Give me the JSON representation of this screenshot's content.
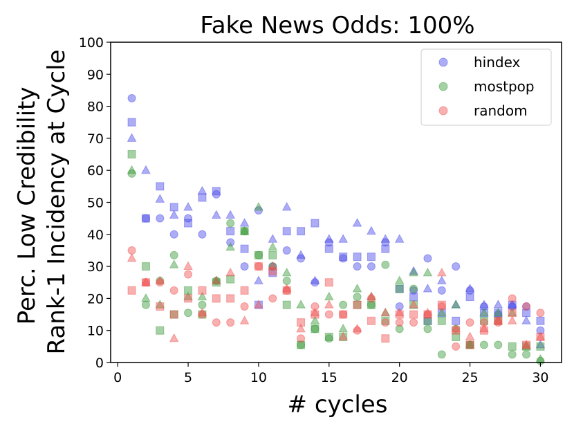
{
  "chart_data": {
    "type": "scatter",
    "title": "Fake News Odds: 100%",
    "xlabel": "# cycles",
    "ylabel": "Perc. Low Credibility\nRank-1 Incidency at Cycle",
    "xlim": [
      -0.5,
      31.5
    ],
    "ylim": [
      0,
      100
    ],
    "xticks": [
      0,
      5,
      10,
      15,
      20,
      25,
      30
    ],
    "yticks": [
      0,
      10,
      20,
      30,
      40,
      50,
      60,
      70,
      80,
      90,
      100
    ],
    "grid": false,
    "legend_position": "top-right",
    "marker_shapes": [
      "circle",
      "square",
      "triangle"
    ],
    "series": [
      {
        "name": "hindex",
        "color": "#4a4ae8",
        "circles": [
          [
            1,
            82.5
          ],
          [
            2,
            45
          ],
          [
            3,
            45
          ],
          [
            4,
            40
          ],
          [
            5,
            45
          ],
          [
            6,
            40
          ],
          [
            7,
            52.5
          ],
          [
            8,
            37.5
          ],
          [
            9,
            30
          ],
          [
            10,
            47.5
          ],
          [
            11,
            30
          ],
          [
            12,
            35
          ],
          [
            13,
            32.5
          ],
          [
            14,
            25
          ],
          [
            15,
            37.5
          ],
          [
            16,
            32.5
          ],
          [
            17,
            30
          ],
          [
            18,
            30
          ],
          [
            19,
            37.5
          ],
          [
            20,
            17.5
          ],
          [
            21,
            22.5
          ],
          [
            22,
            32.5
          ],
          [
            23,
            22.5
          ],
          [
            24,
            30
          ],
          [
            25,
            22.5
          ],
          [
            26,
            17.5
          ],
          [
            27,
            15
          ],
          [
            28,
            17.5
          ],
          [
            29,
            17.5
          ],
          [
            30,
            10
          ]
        ],
        "squares": [
          [
            1,
            75
          ],
          [
            2,
            45
          ],
          [
            3,
            55
          ],
          [
            4,
            48.5
          ],
          [
            5,
            43.5
          ],
          [
            6,
            51.5
          ],
          [
            7,
            53.5
          ],
          [
            8,
            41
          ],
          [
            9,
            35.5
          ],
          [
            10,
            18
          ],
          [
            11,
            28
          ],
          [
            12,
            41
          ],
          [
            13,
            41
          ],
          [
            14,
            43.5
          ],
          [
            15,
            35.5
          ],
          [
            16,
            33
          ],
          [
            17,
            33
          ],
          [
            18,
            33
          ],
          [
            19,
            35.5
          ],
          [
            20,
            23
          ],
          [
            21,
            20.5
          ],
          [
            22,
            13
          ],
          [
            23,
            15.5
          ],
          [
            24,
            13
          ],
          [
            25,
            20.5
          ],
          [
            26,
            15.5
          ],
          [
            27,
            15.5
          ],
          [
            28,
            18
          ],
          [
            29,
            15.5
          ],
          [
            30,
            13
          ]
        ],
        "triangles": [
          [
            1,
            70
          ],
          [
            2,
            60
          ],
          [
            3,
            51
          ],
          [
            4,
            46
          ],
          [
            5,
            48.5
          ],
          [
            6,
            53.5
          ],
          [
            7,
            46
          ],
          [
            8,
            46
          ],
          [
            9,
            43.5
          ],
          [
            10,
            25.5
          ],
          [
            11,
            38.5
          ],
          [
            12,
            48.5
          ],
          [
            13,
            33.5
          ],
          [
            14,
            25.5
          ],
          [
            15,
            38.5
          ],
          [
            16,
            38.5
          ],
          [
            17,
            43.5
          ],
          [
            18,
            41
          ],
          [
            19,
            38.5
          ],
          [
            20,
            38.5
          ],
          [
            21,
            28.5
          ],
          [
            22,
            23
          ],
          [
            23,
            25.5
          ],
          [
            24,
            18
          ],
          [
            25,
            23
          ],
          [
            26,
            18
          ],
          [
            27,
            18
          ],
          [
            28,
            18
          ],
          [
            29,
            13
          ],
          [
            30,
            5.5
          ]
        ]
      },
      {
        "name": "mostpop",
        "color": "#3a9a3a",
        "circles": [
          [
            1,
            59
          ],
          [
            2,
            18
          ],
          [
            3,
            25.5
          ],
          [
            4,
            33.5
          ],
          [
            5,
            15.5
          ],
          [
            6,
            18
          ],
          [
            7,
            25.5
          ],
          [
            8,
            43.5
          ],
          [
            9,
            41
          ],
          [
            10,
            33.5
          ],
          [
            11,
            30
          ],
          [
            12,
            25.5
          ],
          [
            13,
            5.5
          ],
          [
            14,
            10.5
          ],
          [
            15,
            7.5
          ],
          [
            16,
            18
          ],
          [
            17,
            20.5
          ],
          [
            18,
            18
          ],
          [
            19,
            30.5
          ],
          [
            20,
            10.5
          ],
          [
            21,
            23
          ],
          [
            22,
            10.5
          ],
          [
            23,
            2.5
          ],
          [
            24,
            10.5
          ],
          [
            25,
            5.5
          ],
          [
            26,
            5.5
          ],
          [
            27,
            5.5
          ],
          [
            28,
            2.5
          ],
          [
            29,
            2.5
          ],
          [
            30,
            0.5
          ]
        ],
        "squares": [
          [
            1,
            65
          ],
          [
            2,
            30
          ],
          [
            3,
            10
          ],
          [
            4,
            15
          ],
          [
            5,
            22.5
          ],
          [
            6,
            15
          ],
          [
            7,
            25
          ],
          [
            8,
            26
          ],
          [
            9,
            41
          ],
          [
            10,
            33.5
          ],
          [
            11,
            33.5
          ],
          [
            12,
            18
          ],
          [
            13,
            5.5
          ],
          [
            14,
            10.5
          ],
          [
            15,
            8
          ],
          [
            16,
            8
          ],
          [
            17,
            18
          ],
          [
            18,
            18
          ],
          [
            19,
            13
          ],
          [
            20,
            23
          ],
          [
            21,
            18
          ],
          [
            22,
            13
          ],
          [
            23,
            13
          ],
          [
            24,
            8
          ],
          [
            25,
            5.5
          ],
          [
            26,
            13
          ],
          [
            27,
            13
          ],
          [
            28,
            5
          ],
          [
            29,
            5
          ],
          [
            30,
            5
          ]
        ],
        "triangles": [
          [
            1,
            60
          ],
          [
            2,
            20
          ],
          [
            3,
            18
          ],
          [
            4,
            30.5
          ],
          [
            5,
            20.5
          ],
          [
            6,
            20.5
          ],
          [
            7,
            25.5
          ],
          [
            8,
            36
          ],
          [
            9,
            41
          ],
          [
            10,
            48.5
          ],
          [
            11,
            36
          ],
          [
            12,
            28
          ],
          [
            13,
            18
          ],
          [
            14,
            13
          ],
          [
            15,
            20.5
          ],
          [
            16,
            10.5
          ],
          [
            17,
            23
          ],
          [
            18,
            20.5
          ],
          [
            19,
            15.5
          ],
          [
            20,
            25.5
          ],
          [
            21,
            28
          ],
          [
            22,
            28
          ],
          [
            23,
            15.5
          ],
          [
            24,
            18
          ],
          [
            25,
            5.5
          ],
          [
            26,
            15.5
          ],
          [
            27,
            15.5
          ],
          [
            28,
            15.5
          ],
          [
            29,
            5
          ],
          [
            30,
            1
          ]
        ]
      },
      {
        "name": "random",
        "color": "#f05050",
        "circles": [
          [
            1,
            35
          ],
          [
            2,
            25
          ],
          [
            3,
            25
          ],
          [
            4,
            22.5
          ],
          [
            5,
            27.5
          ],
          [
            6,
            15
          ],
          [
            7,
            12.5
          ],
          [
            8,
            12.5
          ],
          [
            9,
            17.5
          ],
          [
            10,
            30
          ],
          [
            11,
            20
          ],
          [
            12,
            22.5
          ],
          [
            13,
            7.5
          ],
          [
            14,
            17.5
          ],
          [
            15,
            15
          ],
          [
            16,
            15
          ],
          [
            17,
            10
          ],
          [
            18,
            20
          ],
          [
            19,
            12.5
          ],
          [
            20,
            12.5
          ],
          [
            21,
            12.5
          ],
          [
            22,
            15
          ],
          [
            23,
            17.5
          ],
          [
            24,
            5
          ],
          [
            25,
            12.5
          ],
          [
            26,
            12.5
          ],
          [
            27,
            12.5
          ],
          [
            28,
            20
          ],
          [
            29,
            17.5
          ],
          [
            30,
            15.5
          ]
        ],
        "squares": [
          [
            1,
            22.5
          ],
          [
            2,
            25
          ],
          [
            3,
            17.5
          ],
          [
            4,
            15
          ],
          [
            5,
            20
          ],
          [
            6,
            22.5
          ],
          [
            7,
            20
          ],
          [
            8,
            20
          ],
          [
            9,
            22.5
          ],
          [
            10,
            30
          ],
          [
            11,
            28.5
          ],
          [
            12,
            22.5
          ],
          [
            13,
            12.5
          ],
          [
            14,
            15
          ],
          [
            15,
            25
          ],
          [
            16,
            15
          ],
          [
            17,
            18
          ],
          [
            18,
            13
          ],
          [
            19,
            7.5
          ],
          [
            20,
            15
          ],
          [
            21,
            15
          ],
          [
            22,
            15
          ],
          [
            23,
            18
          ],
          [
            24,
            10
          ],
          [
            25,
            5.5
          ],
          [
            26,
            10
          ],
          [
            27,
            13
          ],
          [
            28,
            15.5
          ],
          [
            29,
            5.5
          ],
          [
            30,
            8
          ]
        ],
        "triangles": [
          [
            1,
            32.5
          ],
          [
            2,
            25
          ],
          [
            3,
            25.5
          ],
          [
            4,
            7.5
          ],
          [
            5,
            30
          ],
          [
            6,
            15.5
          ],
          [
            7,
            25.5
          ],
          [
            8,
            28
          ],
          [
            9,
            13
          ],
          [
            10,
            18
          ],
          [
            11,
            30
          ],
          [
            12,
            23
          ],
          [
            13,
            10.5
          ],
          [
            14,
            15.5
          ],
          [
            15,
            18
          ],
          [
            16,
            8
          ],
          [
            17,
            10.5
          ],
          [
            18,
            20.5
          ],
          [
            19,
            15.5
          ],
          [
            20,
            15.5
          ],
          [
            21,
            18
          ],
          [
            22,
            15.5
          ],
          [
            23,
            28
          ],
          [
            24,
            10.5
          ],
          [
            25,
            8
          ],
          [
            26,
            10.5
          ],
          [
            27,
            13
          ],
          [
            28,
            13
          ],
          [
            29,
            5.5
          ],
          [
            30,
            8
          ]
        ]
      }
    ]
  }
}
